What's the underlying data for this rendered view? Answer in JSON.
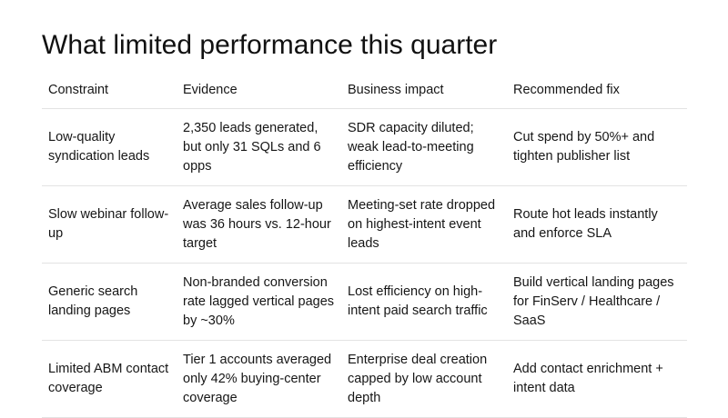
{
  "title": "What limited performance this quarter",
  "table": {
    "headers": [
      "Constraint",
      "Evidence",
      "Business impact",
      "Recommended fix"
    ],
    "rows": [
      [
        "Low-quality syndication leads",
        "2,350 leads generated, but only 31 SQLs and 6 opps",
        "SDR capacity diluted; weak lead-to-meeting efficiency",
        "Cut spend by 50%+ and tighten publisher list"
      ],
      [
        "Slow webinar follow-up",
        "Average sales follow-up was 36 hours vs. 12-hour target",
        "Meeting-set rate dropped on highest-intent event leads",
        "Route hot leads instantly and enforce SLA"
      ],
      [
        "Generic search landing pages",
        "Non-branded conversion rate lagged vertical pages by ~30%",
        "Lost efficiency on high-intent paid search traffic",
        "Build vertical landing pages for FinServ / Healthcare / SaaS"
      ],
      [
        "Limited ABM contact coverage",
        "Tier 1 accounts averaged only 42% buying-center coverage",
        "Enterprise deal creation capped by low account depth",
        "Add contact enrichment + intent data"
      ]
    ]
  }
}
